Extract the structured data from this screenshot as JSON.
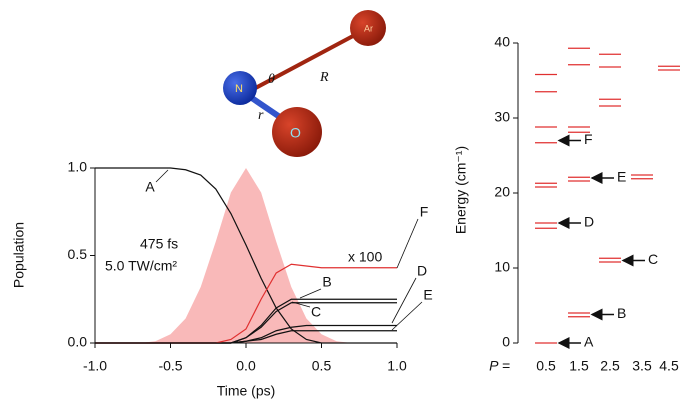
{
  "molecule": {
    "atoms": [
      "N",
      "O",
      "Ar"
    ],
    "coordinates": [
      "θ",
      "R",
      "r"
    ]
  },
  "chart_data": [
    {
      "type": "line",
      "xlabel": "Time (ps)",
      "ylabel": "Population",
      "annotations": [
        "475 fs",
        "5.0 TW/cm²",
        "x 100"
      ],
      "x": [
        -1.0,
        -0.9,
        -0.8,
        -0.7,
        -0.6,
        -0.5,
        -0.4,
        -0.3,
        -0.2,
        -0.1,
        0.0,
        0.1,
        0.2,
        0.3,
        0.4,
        0.5,
        0.6,
        0.7,
        0.8,
        0.9,
        1.0
      ],
      "series": [
        {
          "style": "area",
          "color": "#f9b9b9",
          "values": [
            0,
            0,
            0,
            0,
            0.01,
            0.05,
            0.14,
            0.32,
            0.58,
            0.86,
            1.0,
            0.86,
            0.58,
            0.32,
            0.14,
            0.05,
            0.01,
            0,
            0,
            0,
            0
          ]
        },
        {
          "name": "A",
          "color": "#111111",
          "values": [
            1.0,
            1.0,
            1.0,
            1.0,
            1.0,
            1.0,
            0.99,
            0.96,
            0.88,
            0.74,
            0.56,
            0.37,
            0.2,
            0.08,
            0.02,
            0.0,
            0.0,
            0.0,
            0.0,
            0.0,
            0.0
          ]
        },
        {
          "name": "B",
          "color": "#111111",
          "values": [
            0,
            0,
            0,
            0,
            0,
            0,
            0,
            0,
            0,
            0,
            0.03,
            0.1,
            0.2,
            0.25,
            0.25,
            0.25,
            0.25,
            0.25,
            0.25,
            0.25,
            0.25
          ]
        },
        {
          "name": "C",
          "color": "#111111",
          "values": [
            0,
            0,
            0,
            0,
            0,
            0,
            0,
            0,
            0,
            0,
            0.03,
            0.09,
            0.18,
            0.23,
            0.23,
            0.23,
            0.23,
            0.23,
            0.23,
            0.23,
            0.23
          ]
        },
        {
          "name": "D",
          "color": "#111111",
          "values": [
            0,
            0,
            0,
            0,
            0,
            0,
            0,
            0,
            0,
            0,
            0.01,
            0.03,
            0.07,
            0.09,
            0.1,
            0.1,
            0.1,
            0.1,
            0.1,
            0.1,
            0.1
          ]
        },
        {
          "name": "E",
          "color": "#111111",
          "values": [
            0,
            0,
            0,
            0,
            0,
            0,
            0,
            0,
            0,
            0,
            0.01,
            0.02,
            0.05,
            0.07,
            0.07,
            0.07,
            0.07,
            0.07,
            0.07,
            0.07,
            0.07
          ]
        },
        {
          "name": "F",
          "color": "#e03030",
          "values": [
            0,
            0,
            0,
            0,
            0,
            0,
            0,
            0,
            0,
            0.02,
            0.08,
            0.25,
            0.4,
            0.45,
            0.44,
            0.43,
            0.43,
            0.43,
            0.43,
            0.43,
            0.43
          ]
        }
      ],
      "xlim": [
        -1.0,
        1.0
      ],
      "xticks": [
        {
          "value": -1,
          "label": "-1.0"
        },
        {
          "value": -0.5,
          "label": "-0.5"
        },
        {
          "value": 0,
          "label": "0.0"
        },
        {
          "value": 0.5,
          "label": "0.5"
        },
        {
          "value": 1,
          "label": "1.0"
        }
      ],
      "ylim": [
        0,
        1.0
      ],
      "yticks": [
        {
          "value": 0,
          "label": "0.0"
        },
        {
          "value": 0.5,
          "label": "0.5"
        },
        {
          "value": 1,
          "label": "1.0"
        }
      ]
    },
    {
      "type": "levels",
      "ylabel": "Energy (cm⁻¹)",
      "xlabel": "P =",
      "color": "#e03030",
      "categories": [
        "0.5",
        "1.5",
        "2.5",
        "3.5",
        "4.5"
      ],
      "levels": [
        [
          35.8,
          33.5,
          28.8,
          26.7,
          21.3,
          20.8,
          16.0,
          15.3,
          0.0
        ],
        [
          39.3,
          37.1,
          28.8,
          28.1,
          22.1,
          21.6,
          4.0,
          3.5
        ],
        [
          38.5,
          36.8,
          32.5,
          31.6,
          11.3,
          10.8
        ],
        [
          22.4,
          21.9
        ],
        [
          36.9,
          36.4
        ]
      ],
      "arrows": [
        {
          "label": "A",
          "category": "0.5",
          "value": 0.0
        },
        {
          "label": "B",
          "category": "1.5",
          "value": 3.8
        },
        {
          "label": "C",
          "category": "2.5",
          "value": 11.0
        },
        {
          "label": "D",
          "category": "0.5",
          "value": 16.0
        },
        {
          "label": "E",
          "category": "1.5",
          "value": 22.0
        },
        {
          "label": "F",
          "category": "0.5",
          "value": 27.0
        }
      ],
      "ylim": [
        0,
        40
      ],
      "yticks": [
        0,
        10,
        20,
        30,
        40
      ]
    }
  ]
}
